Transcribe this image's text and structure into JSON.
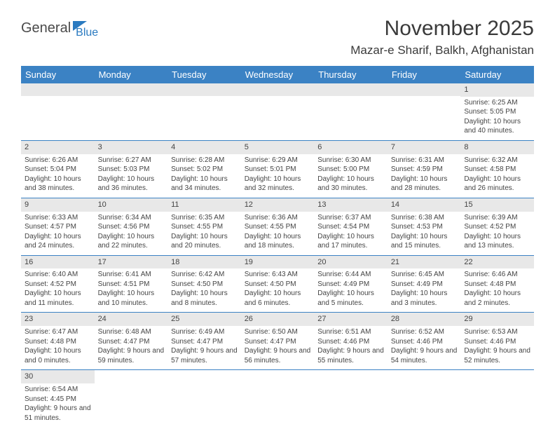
{
  "logo": {
    "part1": "General",
    "part2": "Blue"
  },
  "title": "November 2025",
  "location": "Mazar-e Sharif, Balkh, Afghanistan",
  "colors": {
    "header_bg": "#3b82c4",
    "header_text": "#ffffff",
    "daynum_bg": "#e8e8e8",
    "brand_blue": "#2a7ac0"
  },
  "day_headers": [
    "Sunday",
    "Monday",
    "Tuesday",
    "Wednesday",
    "Thursday",
    "Friday",
    "Saturday"
  ],
  "weeks": [
    [
      null,
      null,
      null,
      null,
      null,
      null,
      {
        "n": "1",
        "sr": "Sunrise: 6:25 AM",
        "ss": "Sunset: 5:05 PM",
        "dl": "Daylight: 10 hours and 40 minutes."
      }
    ],
    [
      {
        "n": "2",
        "sr": "Sunrise: 6:26 AM",
        "ss": "Sunset: 5:04 PM",
        "dl": "Daylight: 10 hours and 38 minutes."
      },
      {
        "n": "3",
        "sr": "Sunrise: 6:27 AM",
        "ss": "Sunset: 5:03 PM",
        "dl": "Daylight: 10 hours and 36 minutes."
      },
      {
        "n": "4",
        "sr": "Sunrise: 6:28 AM",
        "ss": "Sunset: 5:02 PM",
        "dl": "Daylight: 10 hours and 34 minutes."
      },
      {
        "n": "5",
        "sr": "Sunrise: 6:29 AM",
        "ss": "Sunset: 5:01 PM",
        "dl": "Daylight: 10 hours and 32 minutes."
      },
      {
        "n": "6",
        "sr": "Sunrise: 6:30 AM",
        "ss": "Sunset: 5:00 PM",
        "dl": "Daylight: 10 hours and 30 minutes."
      },
      {
        "n": "7",
        "sr": "Sunrise: 6:31 AM",
        "ss": "Sunset: 4:59 PM",
        "dl": "Daylight: 10 hours and 28 minutes."
      },
      {
        "n": "8",
        "sr": "Sunrise: 6:32 AM",
        "ss": "Sunset: 4:58 PM",
        "dl": "Daylight: 10 hours and 26 minutes."
      }
    ],
    [
      {
        "n": "9",
        "sr": "Sunrise: 6:33 AM",
        "ss": "Sunset: 4:57 PM",
        "dl": "Daylight: 10 hours and 24 minutes."
      },
      {
        "n": "10",
        "sr": "Sunrise: 6:34 AM",
        "ss": "Sunset: 4:56 PM",
        "dl": "Daylight: 10 hours and 22 minutes."
      },
      {
        "n": "11",
        "sr": "Sunrise: 6:35 AM",
        "ss": "Sunset: 4:55 PM",
        "dl": "Daylight: 10 hours and 20 minutes."
      },
      {
        "n": "12",
        "sr": "Sunrise: 6:36 AM",
        "ss": "Sunset: 4:55 PM",
        "dl": "Daylight: 10 hours and 18 minutes."
      },
      {
        "n": "13",
        "sr": "Sunrise: 6:37 AM",
        "ss": "Sunset: 4:54 PM",
        "dl": "Daylight: 10 hours and 17 minutes."
      },
      {
        "n": "14",
        "sr": "Sunrise: 6:38 AM",
        "ss": "Sunset: 4:53 PM",
        "dl": "Daylight: 10 hours and 15 minutes."
      },
      {
        "n": "15",
        "sr": "Sunrise: 6:39 AM",
        "ss": "Sunset: 4:52 PM",
        "dl": "Daylight: 10 hours and 13 minutes."
      }
    ],
    [
      {
        "n": "16",
        "sr": "Sunrise: 6:40 AM",
        "ss": "Sunset: 4:52 PM",
        "dl": "Daylight: 10 hours and 11 minutes."
      },
      {
        "n": "17",
        "sr": "Sunrise: 6:41 AM",
        "ss": "Sunset: 4:51 PM",
        "dl": "Daylight: 10 hours and 10 minutes."
      },
      {
        "n": "18",
        "sr": "Sunrise: 6:42 AM",
        "ss": "Sunset: 4:50 PM",
        "dl": "Daylight: 10 hours and 8 minutes."
      },
      {
        "n": "19",
        "sr": "Sunrise: 6:43 AM",
        "ss": "Sunset: 4:50 PM",
        "dl": "Daylight: 10 hours and 6 minutes."
      },
      {
        "n": "20",
        "sr": "Sunrise: 6:44 AM",
        "ss": "Sunset: 4:49 PM",
        "dl": "Daylight: 10 hours and 5 minutes."
      },
      {
        "n": "21",
        "sr": "Sunrise: 6:45 AM",
        "ss": "Sunset: 4:49 PM",
        "dl": "Daylight: 10 hours and 3 minutes."
      },
      {
        "n": "22",
        "sr": "Sunrise: 6:46 AM",
        "ss": "Sunset: 4:48 PM",
        "dl": "Daylight: 10 hours and 2 minutes."
      }
    ],
    [
      {
        "n": "23",
        "sr": "Sunrise: 6:47 AM",
        "ss": "Sunset: 4:48 PM",
        "dl": "Daylight: 10 hours and 0 minutes."
      },
      {
        "n": "24",
        "sr": "Sunrise: 6:48 AM",
        "ss": "Sunset: 4:47 PM",
        "dl": "Daylight: 9 hours and 59 minutes."
      },
      {
        "n": "25",
        "sr": "Sunrise: 6:49 AM",
        "ss": "Sunset: 4:47 PM",
        "dl": "Daylight: 9 hours and 57 minutes."
      },
      {
        "n": "26",
        "sr": "Sunrise: 6:50 AM",
        "ss": "Sunset: 4:47 PM",
        "dl": "Daylight: 9 hours and 56 minutes."
      },
      {
        "n": "27",
        "sr": "Sunrise: 6:51 AM",
        "ss": "Sunset: 4:46 PM",
        "dl": "Daylight: 9 hours and 55 minutes."
      },
      {
        "n": "28",
        "sr": "Sunrise: 6:52 AM",
        "ss": "Sunset: 4:46 PM",
        "dl": "Daylight: 9 hours and 54 minutes."
      },
      {
        "n": "29",
        "sr": "Sunrise: 6:53 AM",
        "ss": "Sunset: 4:46 PM",
        "dl": "Daylight: 9 hours and 52 minutes."
      }
    ],
    [
      {
        "n": "30",
        "sr": "Sunrise: 6:54 AM",
        "ss": "Sunset: 4:45 PM",
        "dl": "Daylight: 9 hours and 51 minutes."
      },
      null,
      null,
      null,
      null,
      null,
      null
    ]
  ]
}
